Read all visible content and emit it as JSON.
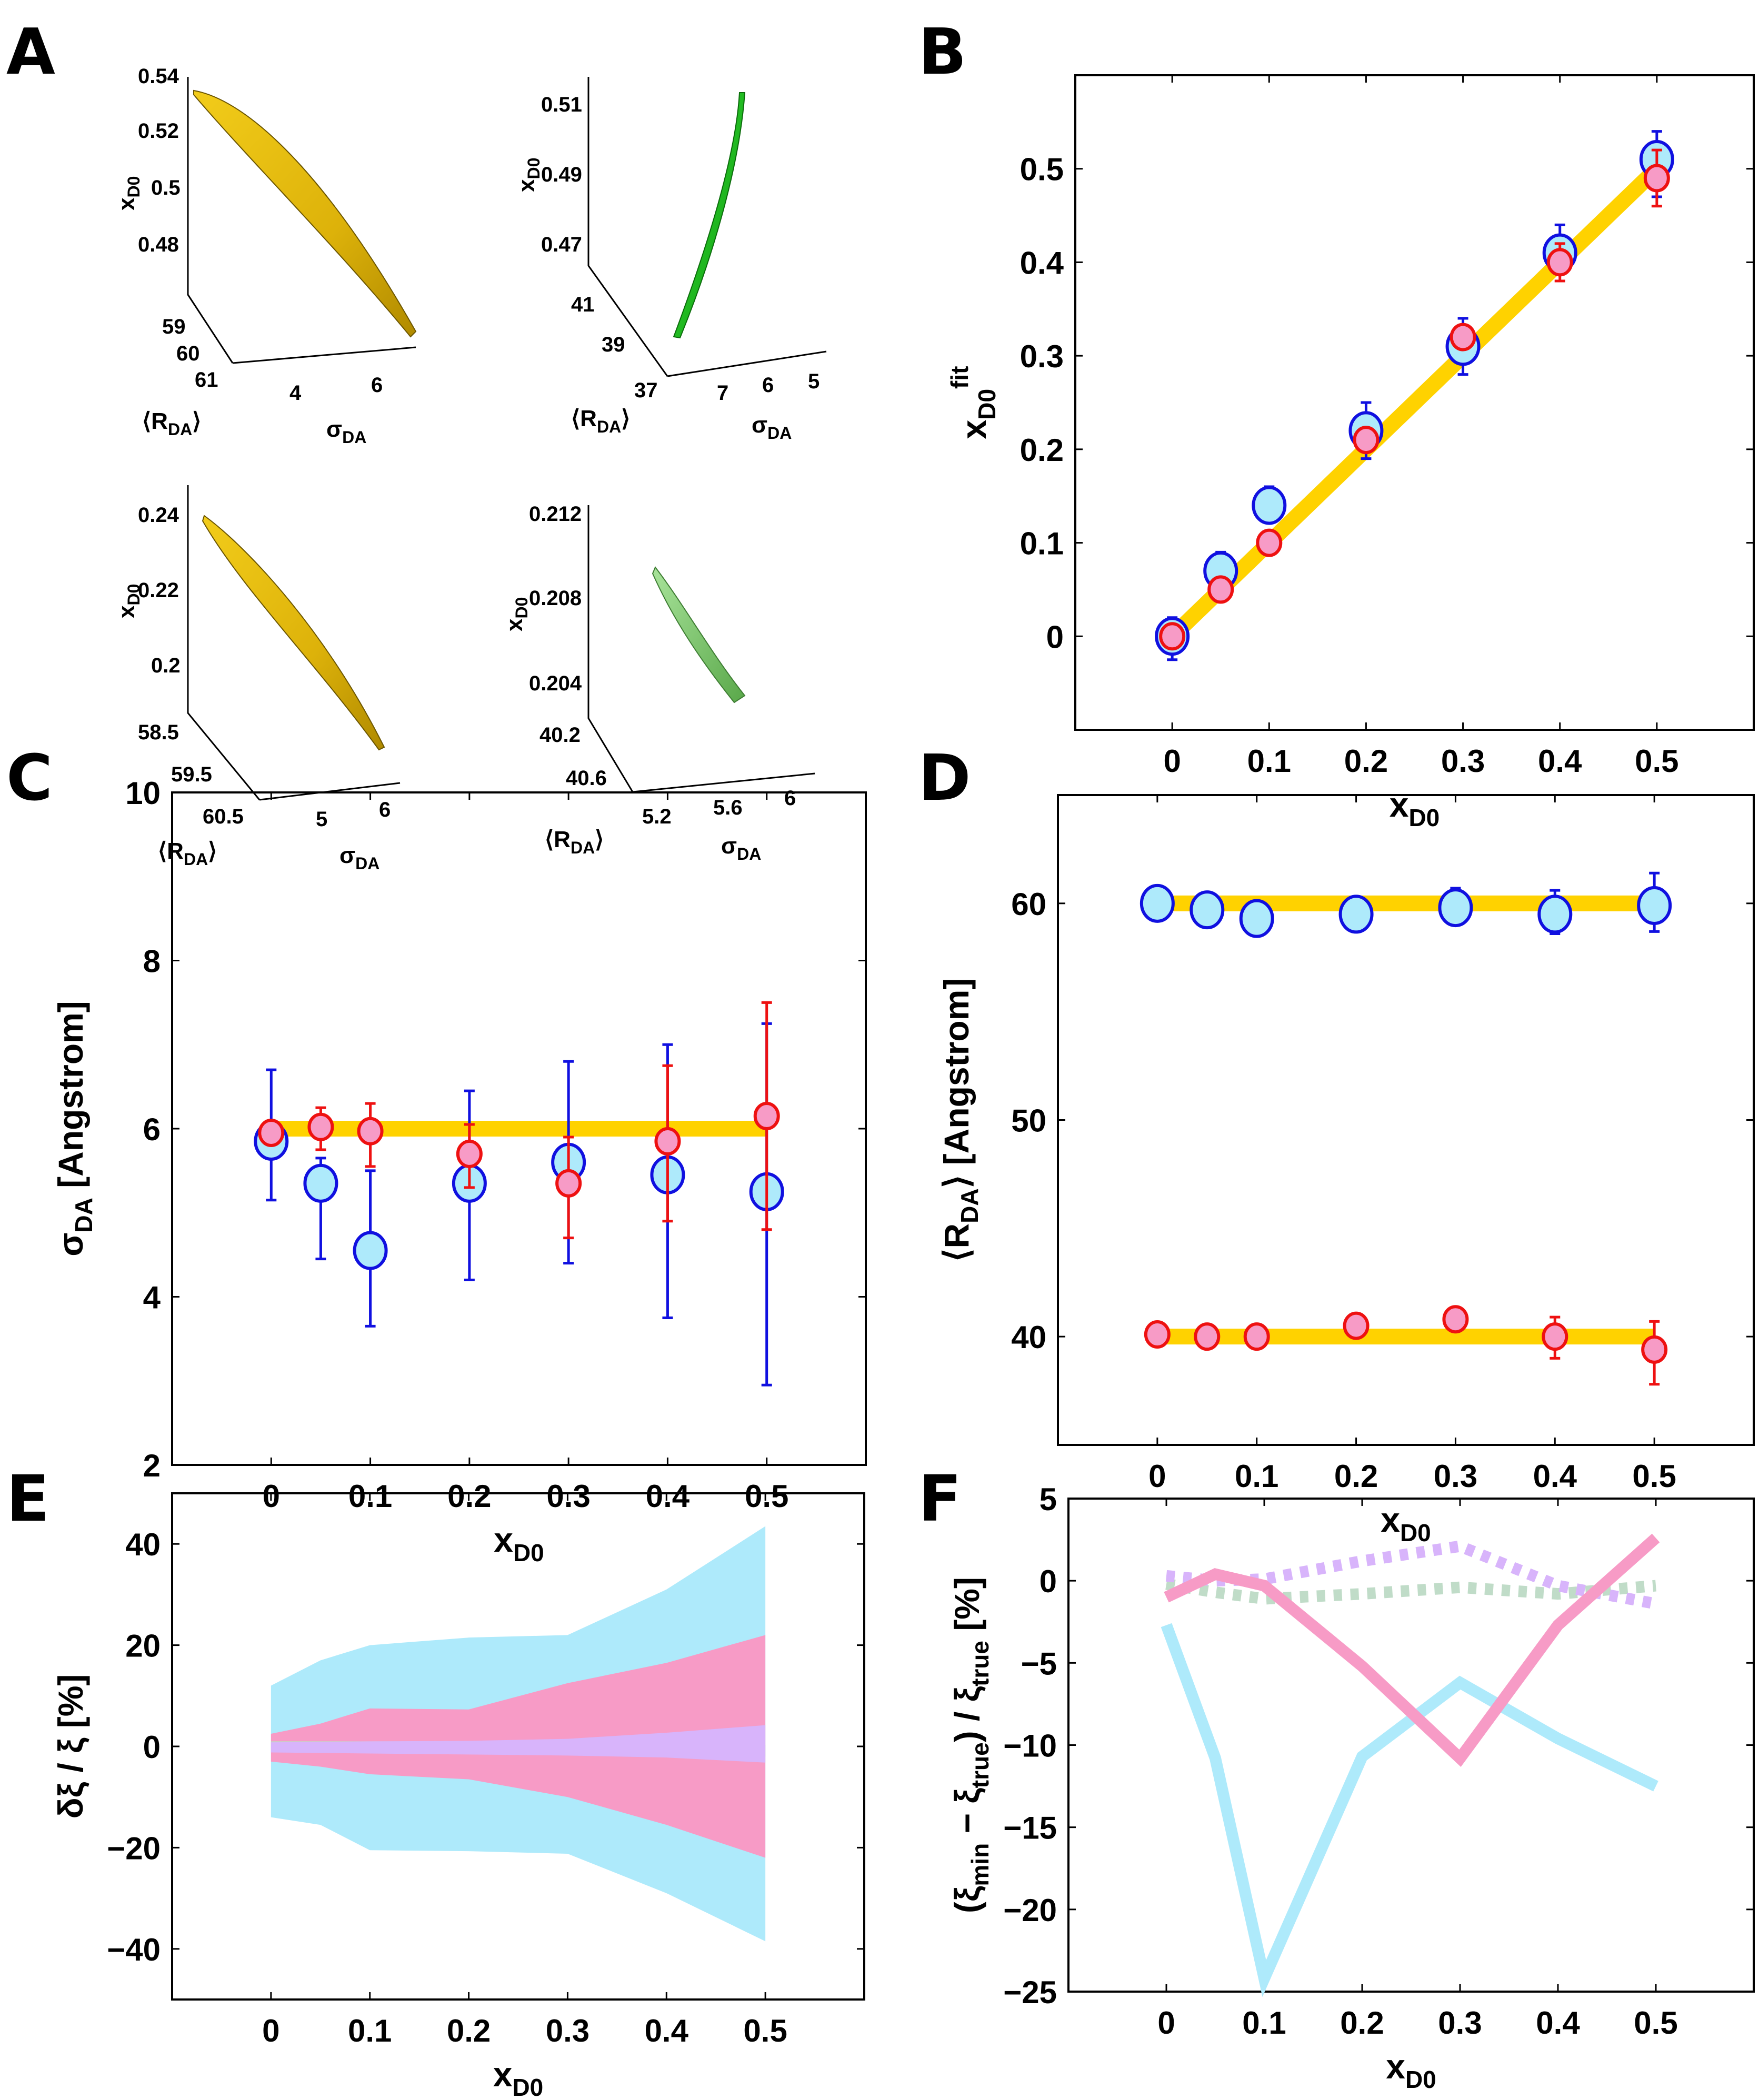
{
  "figure": {
    "panel_letters": [
      "A",
      "B",
      "C",
      "D",
      "E",
      "F"
    ]
  },
  "colors": {
    "gold": "#ffd200",
    "light_blue_fill": "#aeeafb",
    "blue_edge": "#1010e0",
    "pink_fill": "#f79bc6",
    "red_edge": "#ee1111",
    "lavender": "#d8b4fb",
    "sage": "#c0dcc8",
    "green_bright": "#22cc22",
    "green_soft": "#7ec96c",
    "gold_surface": "#e3b90a"
  },
  "chart_data": [
    {
      "id": "A",
      "type": "3d-surface",
      "title": "",
      "subplots": [
        {
          "color": "gold",
          "zlabel": "x_D0",
          "ylabel": "⟨R_DA⟩",
          "xlabel": "σ_DA",
          "z_ticks": [
            "0.54",
            "0.52",
            "0.5",
            "0.48"
          ],
          "y_ticks": [
            "59",
            "60",
            "61"
          ],
          "x_ticks": [
            "4",
            "6"
          ]
        },
        {
          "color": "green",
          "zlabel": "x_D0",
          "ylabel": "⟨R_DA⟩",
          "xlabel": "σ_DA",
          "z_ticks": [
            "0.51",
            "0.49",
            "0.47"
          ],
          "y_ticks": [
            "41",
            "39",
            "37"
          ],
          "x_ticks": [
            "7",
            "6",
            "5"
          ]
        },
        {
          "color": "gold",
          "zlabel": "x_D0",
          "ylabel": "⟨R_DA⟩",
          "xlabel": "σ_DA",
          "z_ticks": [
            "0.24",
            "0.22",
            "0.2"
          ],
          "y_ticks": [
            "58.5",
            "59.5",
            "60.5"
          ],
          "x_ticks": [
            "5",
            "6"
          ]
        },
        {
          "color": "green-soft",
          "zlabel": "x_D0",
          "ylabel": "⟨R_DA⟩",
          "xlabel": "σ_DA",
          "z_ticks": [
            "0.212",
            "0.208",
            "0.204"
          ],
          "y_ticks": [
            "40.2",
            "40.6"
          ],
          "x_ticks": [
            "5.2",
            "5.6",
            "6"
          ]
        }
      ]
    },
    {
      "id": "B",
      "type": "scatter",
      "xlabel": "x_D0",
      "ylabel": "x_D0^fit",
      "xlim": [
        -0.1,
        0.6
      ],
      "ylim": [
        -0.1,
        0.6
      ],
      "x_ticks": [
        "0",
        "0.1",
        "0.2",
        "0.3",
        "0.4",
        "0.5"
      ],
      "y_ticks": [
        "0",
        "0.1",
        "0.2",
        "0.3",
        "0.4",
        "0.5"
      ],
      "reference_line": {
        "x": [
          0,
          0.5
        ],
        "y": [
          0,
          0.5
        ]
      },
      "x": [
        0,
        0.05,
        0.1,
        0.2,
        0.3,
        0.4,
        0.5
      ],
      "series": [
        {
          "name": "blue",
          "values": [
            0.0,
            0.07,
            0.14,
            0.22,
            0.31,
            0.41,
            0.51
          ],
          "err_low": [
            0.025,
            0.0,
            0.0,
            0.03,
            0.03,
            0.0,
            0.04
          ],
          "err_high": [
            0.02,
            0.02,
            0.02,
            0.03,
            0.03,
            0.03,
            0.03
          ]
        },
        {
          "name": "red",
          "values": [
            0.0,
            0.05,
            0.1,
            0.21,
            0.32,
            0.4,
            0.49
          ],
          "err_low": [
            0,
            0,
            0,
            0,
            0,
            0.02,
            0.03
          ],
          "err_high": [
            0,
            0,
            0,
            0,
            0,
            0.02,
            0.03
          ]
        }
      ]
    },
    {
      "id": "C",
      "type": "scatter",
      "xlabel": "x_D0",
      "ylabel": "σ_DA [Angstrom]",
      "xlim": [
        -0.1,
        0.6
      ],
      "ylim": [
        2,
        10
      ],
      "x_ticks": [
        "0",
        "0.1",
        "0.2",
        "0.3",
        "0.4",
        "0.5"
      ],
      "y_ticks": [
        "2",
        "4",
        "6",
        "8",
        "10"
      ],
      "reference_line": {
        "x": [
          0,
          0.5
        ],
        "y": [
          6,
          6
        ]
      },
      "x": [
        0,
        0.05,
        0.1,
        0.2,
        0.3,
        0.4,
        0.5
      ],
      "series": [
        {
          "name": "blue",
          "values": [
            5.85,
            5.35,
            4.55,
            5.35,
            5.6,
            5.45,
            5.25
          ],
          "lower": [
            5.15,
            4.45,
            3.65,
            4.2,
            4.4,
            3.75,
            2.95
          ],
          "upper": [
            6.7,
            5.65,
            5.5,
            6.45,
            6.8,
            7.0,
            7.25
          ]
        },
        {
          "name": "red",
          "values": [
            5.95,
            6.02,
            5.97,
            5.7,
            5.35,
            5.85,
            6.15
          ],
          "lower": [
            5.95,
            5.75,
            5.55,
            5.3,
            4.7,
            4.9,
            4.8
          ],
          "upper": [
            5.95,
            6.25,
            6.3,
            6.05,
            5.9,
            6.75,
            7.5
          ]
        }
      ]
    },
    {
      "id": "D",
      "type": "scatter",
      "xlabel": "x_D0",
      "ylabel": "⟨R_DA⟩ [Angstrom]",
      "xlim": [
        -0.1,
        0.6
      ],
      "ylim": [
        35,
        65
      ],
      "x_ticks": [
        "0",
        "0.1",
        "0.2",
        "0.3",
        "0.4",
        "0.5"
      ],
      "y_ticks": [
        "40",
        "50",
        "60"
      ],
      "reference_lines": [
        {
          "x": [
            0,
            0.5
          ],
          "y": [
            60,
            60
          ]
        },
        {
          "x": [
            0,
            0.5
          ],
          "y": [
            40,
            40
          ]
        }
      ],
      "x": [
        0,
        0.05,
        0.1,
        0.2,
        0.3,
        0.4,
        0.5
      ],
      "series": [
        {
          "name": "blue",
          "values": [
            60.0,
            59.7,
            59.3,
            59.5,
            59.8,
            59.5,
            59.9
          ],
          "lower": [
            60.0,
            59.7,
            59.3,
            59.5,
            59.4,
            58.6,
            58.7
          ],
          "upper": [
            60.0,
            59.7,
            59.3,
            59.5,
            60.7,
            60.6,
            61.4
          ]
        },
        {
          "name": "red",
          "values": [
            40.1,
            40.0,
            40.0,
            40.5,
            40.8,
            40.0,
            39.4
          ],
          "lower": [
            40.1,
            40.0,
            40.0,
            40.5,
            40.8,
            39.0,
            37.8
          ],
          "upper": [
            40.1,
            40.0,
            40.0,
            40.5,
            40.8,
            40.9,
            40.7
          ]
        }
      ]
    },
    {
      "id": "E",
      "type": "area",
      "xlabel": "x_D0",
      "ylabel": "δξ / ξ [%]",
      "xlim": [
        -0.1,
        0.6
      ],
      "ylim": [
        -50,
        50
      ],
      "x_ticks": [
        "0",
        "0.1",
        "0.2",
        "0.3",
        "0.4",
        "0.5"
      ],
      "y_ticks": [
        "-40",
        "-20",
        "0",
        "20",
        "40"
      ],
      "x": [
        0,
        0.05,
        0.1,
        0.2,
        0.3,
        0.4,
        0.5
      ],
      "bands": [
        {
          "name": "light-blue",
          "upper": [
            12,
            17,
            20,
            21.5,
            22,
            31,
            43.5
          ],
          "lower": [
            -14,
            -15.5,
            -20.5,
            -20.7,
            -21.2,
            -29,
            -38.5
          ]
        },
        {
          "name": "pink",
          "upper": [
            2.5,
            4.5,
            7.5,
            7.3,
            12.5,
            16.5,
            22
          ],
          "lower": [
            -3,
            -4,
            -5.5,
            -6.5,
            -10,
            -15.5,
            -22
          ]
        },
        {
          "name": "lavender",
          "upper": [
            0.8,
            0.9,
            1.0,
            1.1,
            1.5,
            2.7,
            4.2
          ],
          "lower": [
            -1.2,
            -1.3,
            -1.4,
            -1.6,
            -1.8,
            -2.2,
            -3.2
          ]
        },
        {
          "name": "sage",
          "upper": [
            1.0,
            1.0,
            1.0,
            1.0,
            1.1,
            1.0,
            0.3
          ],
          "lower": [
            -0.6,
            -0.7,
            -0.8,
            -1.0,
            -1.2,
            -1.6,
            -2.0
          ]
        }
      ]
    },
    {
      "id": "F",
      "type": "line",
      "xlabel": "x_D0",
      "ylabel": "(ξ_min − ξ_true) / ξ_true [%]",
      "xlim": [
        -0.1,
        0.6
      ],
      "ylim": [
        -25,
        5
      ],
      "x_ticks": [
        "0",
        "0.1",
        "0.2",
        "0.3",
        "0.4",
        "0.5"
      ],
      "y_ticks": [
        "-25",
        "-20",
        "-15",
        "-10",
        "-5",
        "0",
        "5"
      ],
      "x": [
        0,
        0.05,
        0.1,
        0.2,
        0.3,
        0.4,
        0.5
      ],
      "series": [
        {
          "name": "light-blue",
          "style": "solid",
          "values": [
            -2.7,
            -10.8,
            -24.2,
            -10.7,
            -6.2,
            -9.6,
            -12.5
          ]
        },
        {
          "name": "pink",
          "style": "solid",
          "values": [
            -1.0,
            0.4,
            -0.3,
            -5.2,
            -10.8,
            -2.7,
            2.6
          ]
        },
        {
          "name": "lavender",
          "style": "dotted",
          "values": [
            0.3,
            0.0,
            0.1,
            1.2,
            2.1,
            -0.3,
            -1.4
          ]
        },
        {
          "name": "sage",
          "style": "dotted",
          "values": [
            -0.2,
            -0.7,
            -1.1,
            -0.8,
            -0.4,
            -0.8,
            -0.3
          ]
        }
      ]
    }
  ],
  "labels": {
    "x_main": "x",
    "x_sub": "D0",
    "sigma": "σ",
    "sub_DA": "DA",
    "fit_sup": "fit",
    "angstrom": " [Angstrom]",
    "r_open": "⟨R",
    "r_close": "⟩",
    "e_ylabel": "δξ / ξ [%]",
    "f_y_open": "(ξ",
    "f_y_min": "min",
    "f_y_minus": " − ξ",
    "f_y_true": "true",
    "f_y_div": ") / ξ",
    "f_y_pct": " [%]"
  }
}
